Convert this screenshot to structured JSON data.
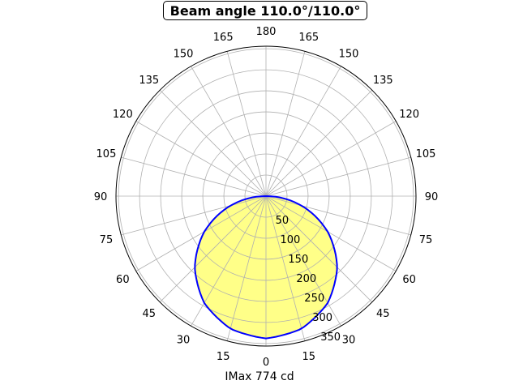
{
  "chart_data": {
    "type": "line",
    "subtype": "polar",
    "title": "Beam angle 110.0°/110.0°",
    "xlabel": "IMax 774 cd",
    "angle_ticks_deg": [
      0,
      15,
      30,
      45,
      60,
      75,
      90,
      105,
      120,
      135,
      150,
      165,
      180
    ],
    "angle_tick_labels": [
      "0",
      "15",
      "30",
      "45",
      "60",
      "75",
      "90",
      "105",
      "120",
      "135",
      "150",
      "165",
      "180"
    ],
    "radial_ticks": [
      50,
      100,
      150,
      200,
      250,
      300,
      350
    ],
    "radial_tick_labels": [
      "50",
      "100",
      "150",
      "200",
      "250",
      "300",
      "350"
    ],
    "rlim": [
      0,
      356
    ],
    "grid": true,
    "series": [
      {
        "angles_deg": [
          -90,
          -75,
          -60,
          -45,
          -30,
          -15,
          0,
          15,
          30,
          45,
          60,
          75,
          90
        ],
        "values": [
          0,
          87,
          169,
          239,
          293,
          326,
          338,
          326,
          293,
          239,
          169,
          87,
          0
        ]
      }
    ],
    "line_color": "#0000ff",
    "fill_color": "#ffff88"
  }
}
